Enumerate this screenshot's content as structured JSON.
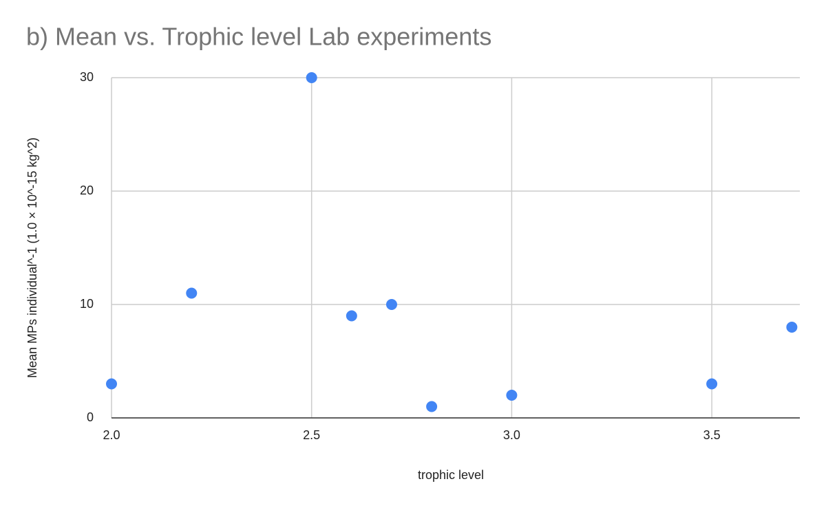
{
  "chart_data": {
    "type": "scatter",
    "title": "b) Mean vs. Trophic level Lab experiments",
    "x_label": "trophic level",
    "y_label": "Mean MPs individual^-1 (1.0 × 10^-15 kg^2)",
    "x": [
      2.0,
      2.2,
      2.5,
      2.6,
      2.7,
      2.8,
      3.0,
      3.5,
      3.7
    ],
    "values": [
      3,
      11,
      30,
      9,
      10,
      1,
      2,
      3,
      8
    ],
    "color": "#4285f4",
    "xlim": [
      2.0,
      3.72
    ],
    "ylim": [
      0,
      30
    ],
    "xticks": [
      {
        "value": 2.0,
        "label": "2.0"
      },
      {
        "value": 2.5,
        "label": "2.5"
      },
      {
        "value": 3.0,
        "label": "3.0"
      },
      {
        "value": 3.5,
        "label": "3.5"
      }
    ],
    "yticks": [
      0,
      10,
      20,
      30
    ],
    "grid": true
  }
}
